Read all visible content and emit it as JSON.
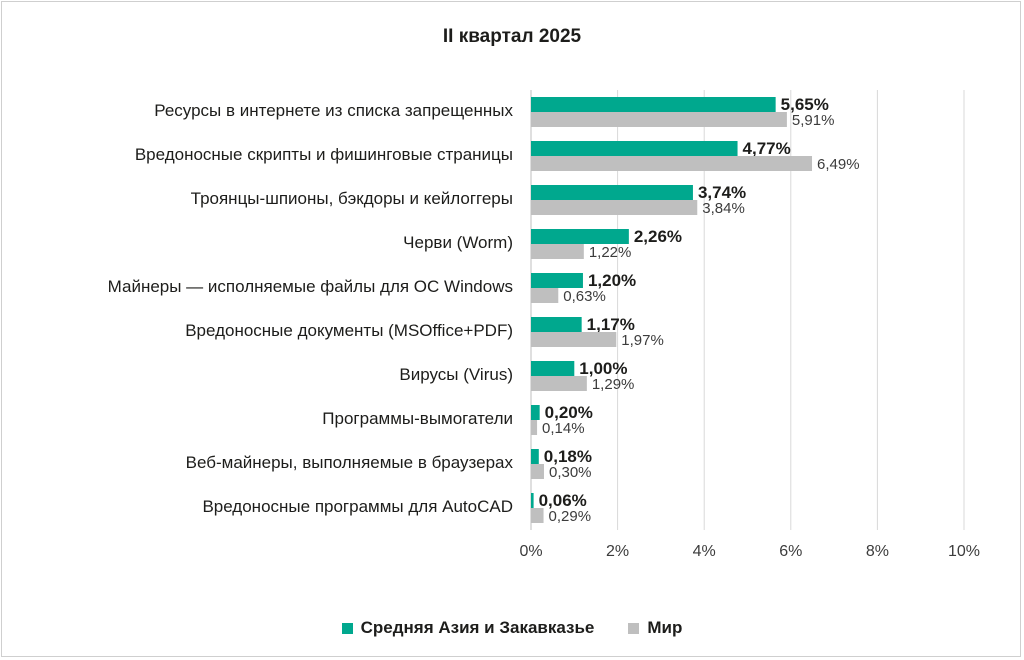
{
  "chart_data": {
    "type": "bar",
    "orientation": "horizontal",
    "title": "II квартал 2025",
    "categories": [
      "Ресурсы в интернете из списка запрещенных",
      "Вредоносные скрипты и фишинговые страницы",
      "Троянцы-шпионы, бэкдоры и кейлоггеры",
      "Черви (Worm)",
      "Майнеры — исполняемые файлы для ОС Windows",
      "Вредоносные документы (MSOffice+PDF)",
      "Вирусы (Virus)",
      "Программы-вымогатели",
      "Веб-майнеры, выполняемые в браузерах",
      "Вредоносные программы для AutoCAD"
    ],
    "series": [
      {
        "name": "Средняя Азия и Закавказье",
        "color": "#00a88e",
        "values": [
          5.65,
          4.77,
          3.74,
          2.26,
          1.2,
          1.17,
          1.0,
          0.2,
          0.18,
          0.06
        ],
        "labels": [
          "5,65%",
          "4,77%",
          "3,74%",
          "2,26%",
          "1,20%",
          "1,17%",
          "1,00%",
          "0,20%",
          "0,18%",
          "0,06%"
        ]
      },
      {
        "name": "Мир",
        "color": "#bfbfbf",
        "values": [
          5.91,
          6.49,
          3.84,
          1.22,
          0.63,
          1.97,
          1.29,
          0.14,
          0.3,
          0.29
        ],
        "labels": [
          "5,91%",
          "6,49%",
          "3,84%",
          "1,22%",
          "0,63%",
          "1,97%",
          "1,29%",
          "0,14%",
          "0,30%",
          "0,29%"
        ]
      }
    ],
    "xlim": [
      0,
      10
    ],
    "xticks": [
      "0%",
      "2%",
      "4%",
      "6%",
      "8%",
      "10%"
    ],
    "grid": true,
    "legend_position": "bottom"
  }
}
